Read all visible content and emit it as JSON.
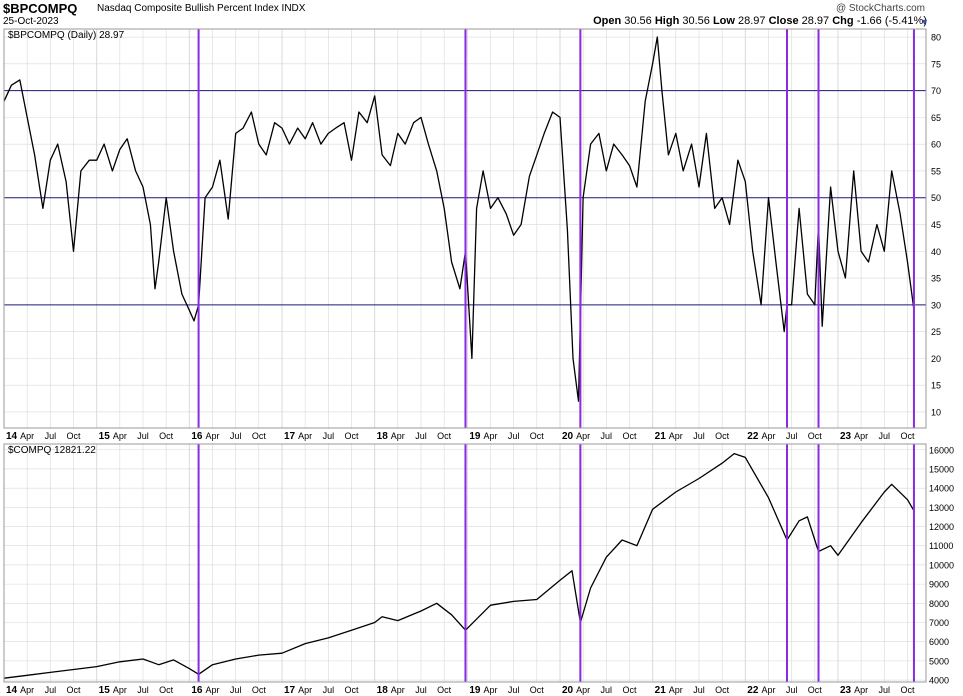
{
  "header": {
    "symbol": "$BPCOMPQ",
    "description": "Nasdaq Composite Bullish Percent Index",
    "exchange": "INDX",
    "date": "25-Oct-2023",
    "watermark": "@ StockCharts.com",
    "open_label": "Open",
    "open": "30.56",
    "high_label": "High",
    "high": "30.56",
    "low_label": "Low",
    "low": "28.97",
    "close_label": "Close",
    "close": "28.97",
    "chg_label": "Chg",
    "chg": "-1.66 (-5.41%)"
  },
  "colors": {
    "price_line": "#000000",
    "horizontal_lines": "#1a1a7a",
    "vertical_markers": "#8a2be2",
    "grid": "#d9d9d9",
    "panel_border": "#9a9a9a"
  },
  "chart_data": [
    {
      "type": "line",
      "legend": "$BPCOMPQ (Daily) 28.97",
      "y_ticks": [
        "10",
        "15",
        "20",
        "25",
        "30",
        "35",
        "40",
        "45",
        "50",
        "55",
        "60",
        "65",
        "70",
        "75",
        "80"
      ],
      "ylim": [
        7,
        81.5
      ],
      "horizontal_lines": [
        30,
        50,
        70
      ],
      "x_axis_labels": [
        "14",
        "Apr",
        "Jul",
        "Oct",
        "15",
        "Apr",
        "Jul",
        "Oct",
        "16",
        "Apr",
        "Jul",
        "Oct",
        "17",
        "Apr",
        "Jul",
        "Oct",
        "18",
        "Apr",
        "Jul",
        "Oct",
        "19",
        "Apr",
        "Jul",
        "Oct",
        "20",
        "Apr",
        "Jul",
        "Oct",
        "21",
        "Apr",
        "Jul",
        "Oct",
        "22",
        "Apr",
        "Jul",
        "Oct",
        "23",
        "Apr",
        "Jul",
        "Oct"
      ],
      "x": [
        2014.0,
        2014.08,
        2014.17,
        2014.25,
        2014.33,
        2014.42,
        2014.5,
        2014.58,
        2014.67,
        2014.75,
        2014.83,
        2014.92,
        2015.0,
        2015.08,
        2015.17,
        2015.25,
        2015.33,
        2015.42,
        2015.5,
        2015.58,
        2015.63,
        2015.67,
        2015.75,
        2015.83,
        2015.92,
        2016.0,
        2016.05,
        2016.1,
        2016.17,
        2016.25,
        2016.33,
        2016.42,
        2016.5,
        2016.58,
        2016.67,
        2016.75,
        2016.83,
        2016.92,
        2017.0,
        2017.08,
        2017.17,
        2017.25,
        2017.33,
        2017.42,
        2017.5,
        2017.58,
        2017.67,
        2017.75,
        2017.83,
        2017.92,
        2018.0,
        2018.08,
        2018.17,
        2018.25,
        2018.33,
        2018.42,
        2018.5,
        2018.58,
        2018.67,
        2018.75,
        2018.83,
        2018.92,
        2018.98,
        2019.05,
        2019.1,
        2019.17,
        2019.25,
        2019.33,
        2019.42,
        2019.5,
        2019.58,
        2019.67,
        2019.75,
        2019.83,
        2019.92,
        2020.0,
        2020.08,
        2020.14,
        2020.2,
        2020.25,
        2020.33,
        2020.42,
        2020.5,
        2020.58,
        2020.67,
        2020.75,
        2020.83,
        2020.92,
        2021.0,
        2021.05,
        2021.1,
        2021.17,
        2021.25,
        2021.33,
        2021.42,
        2021.5,
        2021.58,
        2021.67,
        2021.75,
        2021.83,
        2021.92,
        2022.0,
        2022.08,
        2022.17,
        2022.25,
        2022.33,
        2022.42,
        2022.45,
        2022.5,
        2022.58,
        2022.67,
        2022.75,
        2022.79,
        2022.83,
        2022.92,
        2023.0,
        2023.08,
        2023.17,
        2023.25,
        2023.33,
        2023.42,
        2023.5,
        2023.58,
        2023.67,
        2023.75,
        2023.82
      ],
      "values": [
        68,
        71,
        72,
        65,
        58,
        48,
        57,
        60,
        53,
        40,
        55,
        57,
        57,
        60,
        55,
        59,
        61,
        55,
        52,
        45,
        33,
        38,
        50,
        40,
        32,
        29,
        27,
        30,
        50,
        52,
        57,
        46,
        62,
        63,
        66,
        60,
        58,
        64,
        63,
        60,
        63,
        61,
        64,
        60,
        62,
        63,
        64,
        57,
        66,
        64,
        69,
        58,
        56,
        62,
        60,
        64,
        65,
        60,
        55,
        48,
        38,
        33,
        40,
        20,
        48,
        55,
        48,
        50,
        47,
        43,
        45,
        54,
        58,
        62,
        66,
        65,
        44,
        20,
        12,
        50,
        60,
        62,
        55,
        60,
        58,
        56,
        52,
        68,
        75,
        80,
        70,
        58,
        62,
        55,
        60,
        52,
        62,
        48,
        50,
        45,
        57,
        53,
        40,
        30,
        50,
        38,
        25,
        30,
        30,
        48,
        32,
        30,
        45,
        26,
        52,
        40,
        35,
        55,
        40,
        38,
        45,
        40,
        55,
        47,
        38,
        29
      ]
    },
    {
      "type": "line",
      "legend": "$COMPQ 12821.22",
      "y_ticks": [
        "4000",
        "5000",
        "6000",
        "7000",
        "8000",
        "9000",
        "10000",
        "11000",
        "12000",
        "13000",
        "14000",
        "15000",
        "16000"
      ],
      "ylim": [
        3900,
        16300
      ],
      "x_axis_labels": [
        "14",
        "Apr",
        "Jul",
        "Oct",
        "15",
        "Apr",
        "Jul",
        "Oct",
        "16",
        "Apr",
        "Jul",
        "Oct",
        "17",
        "Apr",
        "Jul",
        "Oct",
        "18",
        "Apr",
        "Jul",
        "Oct",
        "19",
        "Apr",
        "Jul",
        "Oct",
        "20",
        "Apr",
        "Jul",
        "Oct",
        "21",
        "Apr",
        "Jul",
        "Oct",
        "22",
        "Apr",
        "Jul",
        "Oct",
        "23",
        "Apr",
        "Jul",
        "Oct"
      ],
      "x": [
        2014.0,
        2014.25,
        2014.5,
        2014.75,
        2015.0,
        2015.25,
        2015.5,
        2015.67,
        2015.83,
        2016.0,
        2016.1,
        2016.25,
        2016.5,
        2016.75,
        2017.0,
        2017.25,
        2017.5,
        2017.75,
        2018.0,
        2018.08,
        2018.25,
        2018.5,
        2018.67,
        2018.83,
        2018.98,
        2019.25,
        2019.5,
        2019.75,
        2020.0,
        2020.13,
        2020.22,
        2020.33,
        2020.5,
        2020.67,
        2020.83,
        2021.0,
        2021.25,
        2021.5,
        2021.75,
        2021.88,
        2022.0,
        2022.25,
        2022.45,
        2022.58,
        2022.67,
        2022.79,
        2022.92,
        2023.0,
        2023.25,
        2023.5,
        2023.58,
        2023.75,
        2023.82
      ],
      "values": [
        4100,
        4250,
        4400,
        4550,
        4700,
        4950,
        5100,
        4800,
        5050,
        4600,
        4300,
        4800,
        5100,
        5300,
        5400,
        5900,
        6200,
        6600,
        7000,
        7300,
        7100,
        7600,
        8000,
        7400,
        6600,
        7900,
        8100,
        8200,
        9200,
        9700,
        7000,
        8800,
        10400,
        11300,
        11000,
        12900,
        13800,
        14500,
        15300,
        15800,
        15600,
        13500,
        11300,
        12300,
        12500,
        10700,
        11000,
        10500,
        12200,
        13800,
        14200,
        13400,
        12821
      ]
    }
  ]
}
